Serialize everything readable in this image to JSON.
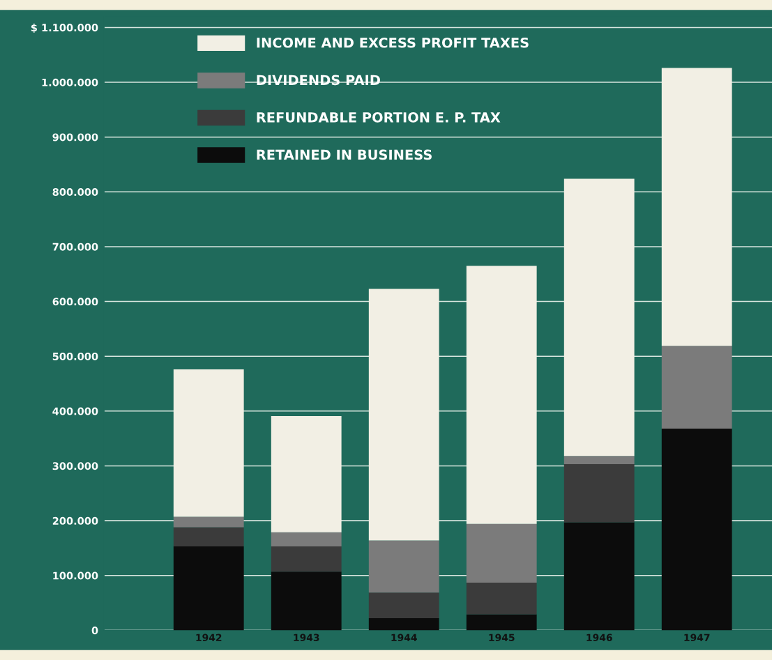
{
  "chart_data": {
    "type": "bar",
    "stacked": true,
    "categories": [
      "1942",
      "1943",
      "1944",
      "1945",
      "1946",
      "1947"
    ],
    "series": [
      {
        "name": "RETAINED IN BUSINESS",
        "color": "#0c0c0c",
        "values": [
          153000,
          107000,
          22000,
          29000,
          197000,
          368000
        ]
      },
      {
        "name": "REFUNDABLE PORTION E. P. TAX",
        "color": "#3b3b3b",
        "values": [
          35000,
          46000,
          47000,
          58000,
          106000,
          0
        ]
      },
      {
        "name": "DIVIDENDS PAID",
        "color": "#7b7b7b",
        "values": [
          19000,
          26000,
          95000,
          107000,
          15000,
          151000
        ]
      },
      {
        "name": "INCOME AND EXCESS PROFIT TAXES",
        "color": "#f2efe4",
        "values": [
          269000,
          212000,
          459000,
          471000,
          506000,
          507000
        ]
      }
    ],
    "ylim": [
      0,
      1120000
    ],
    "yticks": [
      {
        "value": 0,
        "label": "0"
      },
      {
        "value": 100000,
        "label": "100.000"
      },
      {
        "value": 200000,
        "label": "200.000"
      },
      {
        "value": 300000,
        "label": "300.000"
      },
      {
        "value": 400000,
        "label": "400.000"
      },
      {
        "value": 500000,
        "label": "500.000"
      },
      {
        "value": 600000,
        "label": "600.000"
      },
      {
        "value": 700000,
        "label": "700.000"
      },
      {
        "value": 800000,
        "label": "800.000"
      },
      {
        "value": 900000,
        "label": "900.000"
      },
      {
        "value": 1000000,
        "label": "1.000.000"
      },
      {
        "value": 1100000,
        "label": "$ 1.100.000"
      }
    ],
    "grid": "y",
    "legend": "top left"
  }
}
